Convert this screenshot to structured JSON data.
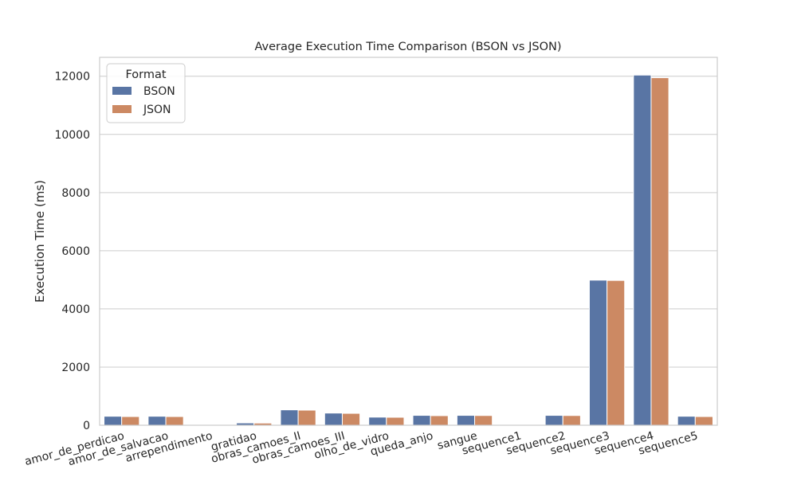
{
  "chart_data": {
    "type": "bar",
    "title": "Average Execution Time Comparison (BSON vs JSON)",
    "xlabel": "",
    "ylabel": "Execution Time (ms)",
    "ylim": [
      0,
      12650
    ],
    "yticks": [
      0,
      2000,
      4000,
      6000,
      8000,
      10000,
      12000
    ],
    "grid": true,
    "legend_title": "Format",
    "legend_position": "top-left",
    "categories": [
      "amor_de_perdicao",
      "amor_de_salvacao",
      "arrependimento",
      "gratidao",
      "obras_camoes_II",
      "obras_camoes_III",
      "olho_de_vidro",
      "queda_anjo",
      "sangue",
      "sequence1",
      "sequence2",
      "sequence3",
      "sequence4",
      "sequence5"
    ],
    "series": [
      {
        "name": "BSON",
        "color": "#5975a4",
        "values": [
          310,
          310,
          10,
          80,
          530,
          420,
          280,
          340,
          340,
          10,
          340,
          4990,
          12040,
          310
        ]
      },
      {
        "name": "JSON",
        "color": "#cc8963",
        "values": [
          300,
          300,
          10,
          75,
          520,
          410,
          275,
          330,
          335,
          10,
          335,
          4980,
          11950,
          300
        ]
      }
    ]
  }
}
